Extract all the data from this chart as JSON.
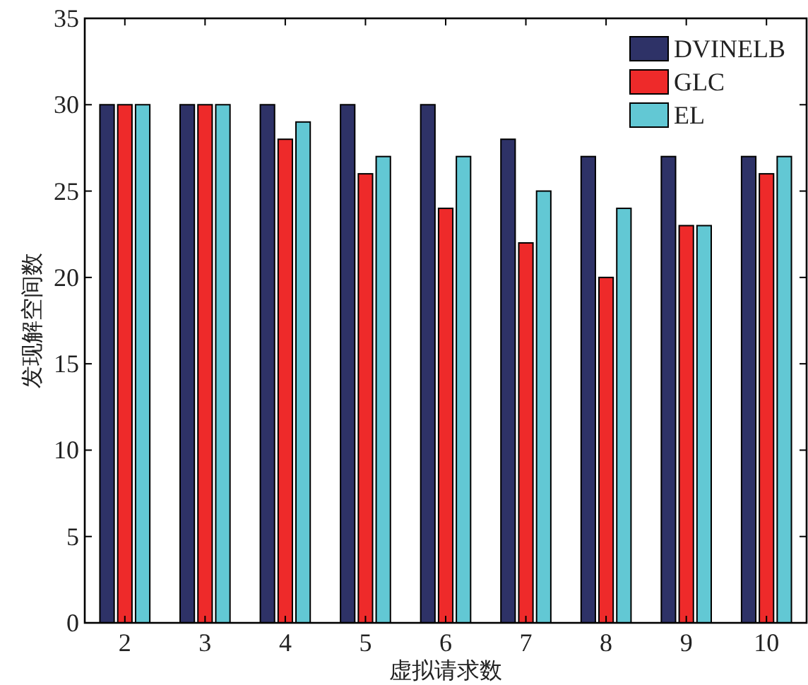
{
  "chart_data": {
    "type": "bar",
    "xlabel": "虚拟请求数",
    "ylabel": "发现解空间数",
    "categories": [
      "2",
      "3",
      "4",
      "5",
      "6",
      "7",
      "8",
      "9",
      "10"
    ],
    "series": [
      {
        "name": "DVINELB",
        "color": "#2e3267",
        "values": [
          30,
          30,
          30,
          30,
          30,
          28,
          27,
          27,
          27
        ]
      },
      {
        "name": "GLC",
        "color": "#ee2a2a",
        "values": [
          30,
          30,
          28,
          26,
          24,
          22,
          20,
          23,
          26
        ]
      },
      {
        "name": "EL",
        "color": "#62c8d4",
        "values": [
          30,
          30,
          29,
          27,
          27,
          25,
          24,
          23,
          27
        ]
      }
    ],
    "ylim": [
      0,
      35
    ],
    "yticks": [
      0,
      5,
      10,
      15,
      20,
      25,
      30,
      35
    ],
    "legend": "top right"
  }
}
